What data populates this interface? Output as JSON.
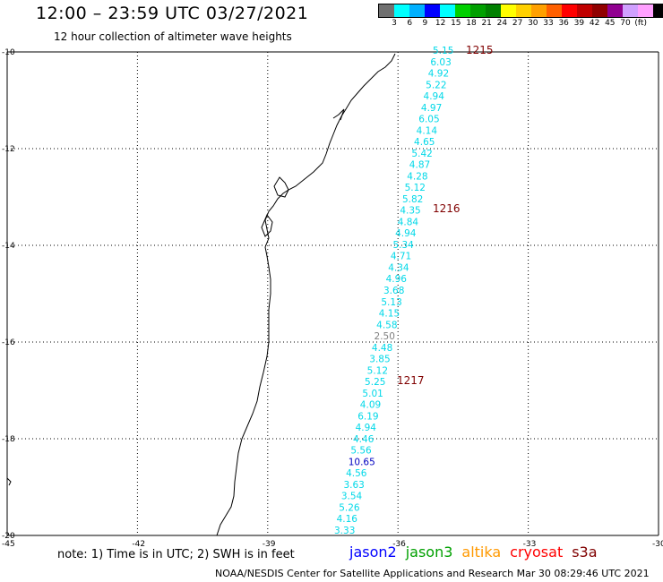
{
  "header": {
    "title": "12:00 – 23:59 UTC 03/27/2021",
    "subtitle": "12 hour collection of altimeter wave heights"
  },
  "color_scale": {
    "colors": [
      "#707070",
      "#00ffff",
      "#00b0ff",
      "#0000ff",
      "#00ffff",
      "#00d000",
      "#00a000",
      "#008000",
      "#ffff00",
      "#ffd000",
      "#ffa000",
      "#ff6000",
      "#ff0000",
      "#c00000",
      "#900000",
      "#900090",
      "#d0a0ff",
      "#ffa0ff",
      "#000000"
    ],
    "labels": [
      "3",
      "6",
      "9",
      "12",
      "15",
      "18",
      "21",
      "24",
      "27",
      "30",
      "33",
      "36",
      "39",
      "42",
      "45",
      "70",
      "(ft)"
    ]
  },
  "axes": {
    "lat_labels": [
      "-10",
      "-12",
      "-14",
      "-16",
      "-18",
      "-20"
    ],
    "lon_labels": [
      "-45",
      "-42",
      "-39",
      "-36",
      "-33",
      "-30"
    ]
  },
  "track": {
    "values": [
      "5.15",
      "6.03",
      "4.92",
      "5.22",
      "4.94",
      "4.97",
      "6.05",
      "4.14",
      "4.65",
      "5.42",
      "4.87",
      "4.28",
      "5.12",
      "5.82",
      "4.35",
      "4.84",
      "4.94",
      "5.34",
      "4.71",
      "4.34",
      "4.96",
      "3.68",
      "5.13",
      "4.15",
      "4.58",
      "2.50",
      "4.48",
      "3.85",
      "5.12",
      "5.25",
      "5.01",
      "4.09",
      "6.19",
      "4.94",
      "4.46",
      "5.56",
      "10.65",
      "4.56",
      "3.63",
      "3.54",
      "5.26",
      "4.16",
      "3.33"
    ],
    "colors": {
      "default": "#00d8e8",
      "low": "#808080",
      "high": "#0000c0"
    },
    "time_labels": [
      "1215",
      "1216",
      "1217"
    ],
    "time_label_color": "#800000"
  },
  "note": "note: 1) Time is in UTC; 2) SWH is in feet",
  "satellites": [
    {
      "name": "jason2",
      "color": "#0000ff"
    },
    {
      "name": "jason3",
      "color": "#00a000"
    },
    {
      "name": "altika",
      "color": "#ff9900"
    },
    {
      "name": "cryosat",
      "color": "#ff0000"
    },
    {
      "name": "s3a",
      "color": "#800000"
    }
  ],
  "footer": "NOAA/NESDIS Center for Satellite Applications and Research   Mar 30 08:29:46 UTC 2021"
}
